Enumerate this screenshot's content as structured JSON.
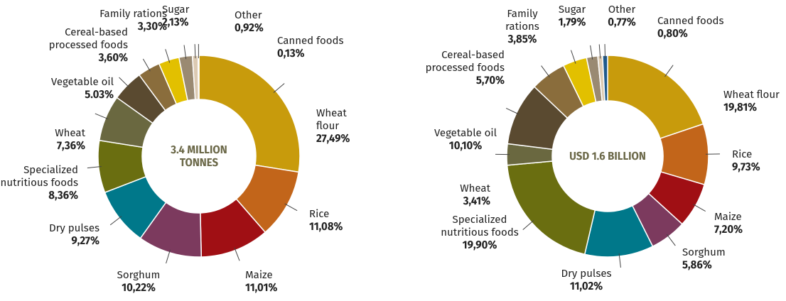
{
  "chart_data": [
    {
      "type": "donut",
      "center_label": "3.4 MILLION TONNES",
      "categories": [
        "Wheat flour",
        "Rice",
        "Maize",
        "Sorghum",
        "Dry pulses",
        "Specialized nutritious foods",
        "Wheat",
        "Vegetable oil",
        "Cereal-based processed foods",
        "Family rations",
        "Sugar",
        "Other",
        "Canned foods"
      ],
      "values": [
        27.49,
        11.08,
        11.01,
        10.22,
        9.27,
        8.36,
        7.36,
        5.03,
        3.6,
        3.3,
        2.13,
        0.92,
        0.13
      ],
      "value_labels": [
        "27,49%",
        "11,08%",
        "11,01%",
        "10,22%",
        "9,27%",
        "8,36%",
        "7,36%",
        "5.03%",
        "3,60%",
        "3,30%",
        "2,13%",
        "0,92%",
        "0,13%"
      ],
      "colors": [
        "#c89b0c",
        "#c2651a",
        "#a00f14",
        "#7c3a5e",
        "#00788a",
        "#6a6e10",
        "#6a6840",
        "#5a4a30",
        "#8a6d3c",
        "#e2c000",
        "#9a8a72",
        "#dccab2",
        "#1f5a8c"
      ]
    },
    {
      "type": "donut",
      "center_label": "USD 1.6 BILLION",
      "categories": [
        "Wheat flour",
        "Rice",
        "Maize",
        "Sorghum",
        "Dry pulses",
        "Specialized nutritious foods",
        "Wheat",
        "Vegetable oil",
        "Cereal-based processed foods",
        "Family rations",
        "Sugar",
        "Other",
        "Canned foods"
      ],
      "values": [
        19.81,
        9.73,
        7.2,
        5.86,
        11.02,
        19.9,
        3.41,
        10.1,
        5.7,
        3.85,
        1.79,
        0.77,
        0.8
      ],
      "value_labels": [
        "19,81%",
        "9,73%",
        "7,20%",
        "5,86%",
        "11,02%",
        "19,90%",
        "3,41%",
        "10,10%",
        "5,70%",
        "3,85%",
        "1,79%",
        "0,77%",
        "0,80%"
      ],
      "colors": [
        "#c89b0c",
        "#c2651a",
        "#a00f14",
        "#7c3a5e",
        "#00788a",
        "#6a6e10",
        "#6a6840",
        "#5a4a30",
        "#8a6d3c",
        "#e2c000",
        "#9a8a72",
        "#dccab2",
        "#1f5a8c"
      ]
    }
  ]
}
